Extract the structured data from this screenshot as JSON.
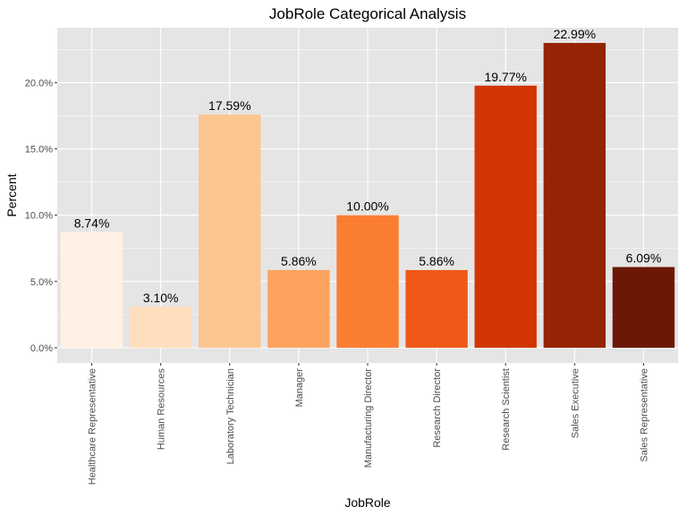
{
  "chart_data": {
    "type": "bar",
    "title": "JobRole Categorical Analysis",
    "xlabel": "JobRole",
    "ylabel": "Percent",
    "categories": [
      "Healthcare Representative",
      "Human Resources",
      "Laboratory Technician",
      "Manager",
      "Manufacturing Director",
      "Research Director",
      "Research Scientist",
      "Sales Executive",
      "Sales Representative"
    ],
    "values": [
      8.74,
      3.1,
      17.59,
      5.86,
      10.0,
      5.86,
      19.77,
      22.99,
      6.09
    ],
    "value_labels": [
      "8.74%",
      "3.10%",
      "17.59%",
      "5.86%",
      "10.00%",
      "5.86%",
      "19.77%",
      "22.99%",
      "6.09%"
    ],
    "colors": [
      "#fff1e3",
      "#fedebf",
      "#fdc590",
      "#fda35f",
      "#fb7d32",
      "#ef5817",
      "#d13503",
      "#952404",
      "#6b1906"
    ],
    "ylim": [
      -1.15,
      24.14
    ],
    "yticks": [
      0,
      5,
      10,
      15,
      20
    ],
    "ytick_labels": [
      "0.0%",
      "5.0%",
      "10.0%",
      "15.0%",
      "20.0%"
    ],
    "grid": true,
    "panel_background": "#e5e5e5",
    "grid_color": "#ffffff"
  }
}
